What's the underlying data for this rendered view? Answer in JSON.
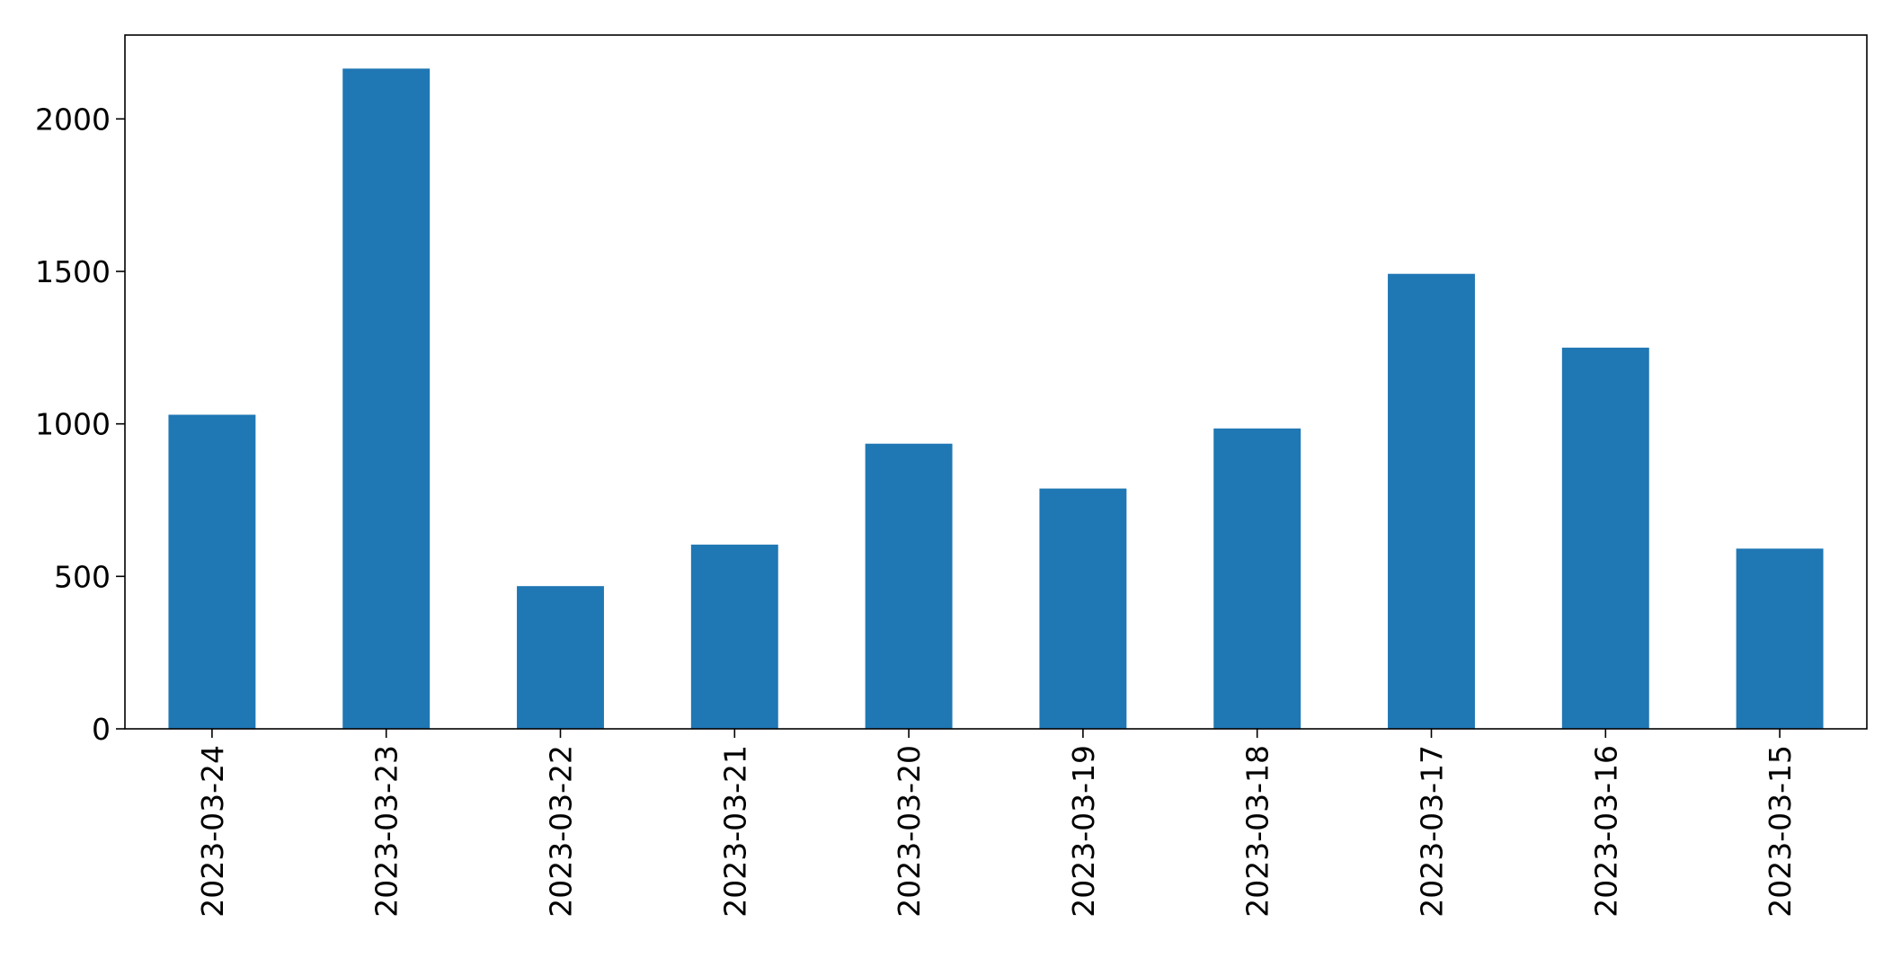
{
  "chart_data": {
    "type": "bar",
    "categories": [
      "2023-03-24",
      "2023-03-23",
      "2023-03-22",
      "2023-03-21",
      "2023-03-20",
      "2023-03-19",
      "2023-03-18",
      "2023-03-17",
      "2023-03-16",
      "2023-03-15"
    ],
    "values": [
      1030,
      2165,
      468,
      604,
      935,
      788,
      985,
      1492,
      1250,
      591
    ],
    "title": "",
    "xlabel": "",
    "ylabel": "",
    "ylim": [
      0,
      2275
    ],
    "yticks": [
      0,
      500,
      1000,
      1500,
      2000
    ],
    "grid": false,
    "legend": "none",
    "bar_color": "#1f77b4"
  }
}
